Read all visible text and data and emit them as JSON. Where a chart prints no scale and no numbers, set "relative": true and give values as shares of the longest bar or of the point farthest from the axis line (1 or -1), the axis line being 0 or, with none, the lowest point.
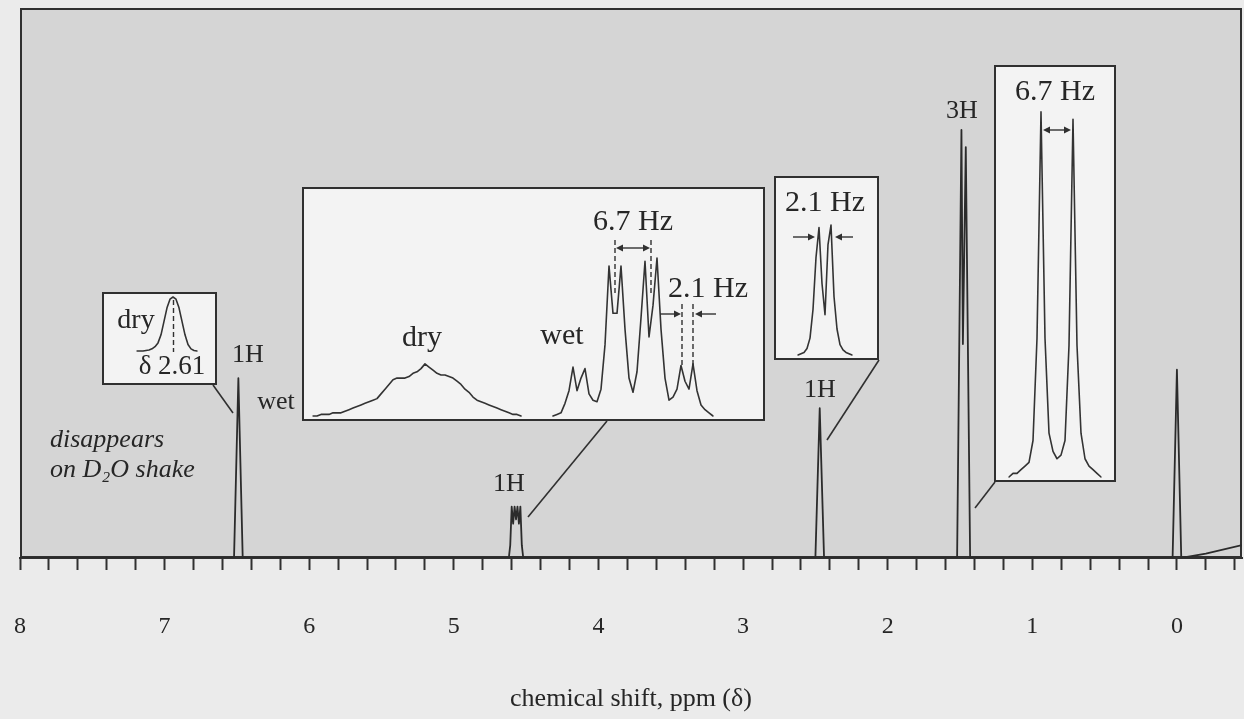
{
  "chart_data": [
    {
      "type": "line",
      "xlabel": "chemical shift, ppm (δ)",
      "relative": true,
      "color": "#2b2b2b",
      "x": [
        8,
        6.52,
        6.49,
        6.46,
        4.62,
        4.61,
        4.6,
        4.59,
        4.58,
        4.57,
        4.56,
        4.55,
        4.54,
        4.53,
        4.52,
        2.5,
        2.47,
        2.44,
        1.52,
        1.49,
        1.48,
        1.46,
        1.43,
        0.03,
        0,
        -0.03,
        -0.2,
        -0.45
      ],
      "values": [
        0,
        0,
        0.42,
        0,
        0,
        0.03,
        0.12,
        0.08,
        0.12,
        0.09,
        0.12,
        0.08,
        0.12,
        0.03,
        0,
        0,
        0.35,
        0,
        0,
        1,
        0.5,
        0.96,
        0,
        0,
        0.44,
        0,
        0.01,
        0.03
      ],
      "xlim": [
        8,
        -0.45
      ],
      "xticks": [
        8,
        {
          "value": 7.8,
          "label": null
        },
        {
          "value": 7.6,
          "label": null
        },
        {
          "value": 7.4,
          "label": null
        },
        {
          "value": 7.2,
          "label": null
        },
        7,
        {
          "value": 6.8,
          "label": null
        },
        {
          "value": 6.6,
          "label": null
        },
        {
          "value": 6.4,
          "label": null
        },
        {
          "value": 6.2,
          "label": null
        },
        6,
        {
          "value": 5.8,
          "label": null
        },
        {
          "value": 5.6,
          "label": null
        },
        {
          "value": 5.4,
          "label": null
        },
        {
          "value": 5.2,
          "label": null
        },
        5,
        {
          "value": 4.8,
          "label": null
        },
        {
          "value": 4.6,
          "label": null
        },
        {
          "value": 4.4,
          "label": null
        },
        {
          "value": 4.2,
          "label": null
        },
        4,
        {
          "value": 3.8,
          "label": null
        },
        {
          "value": 3.6,
          "label": null
        },
        {
          "value": 3.4,
          "label": null
        },
        {
          "value": 3.2,
          "label": null
        },
        3,
        {
          "value": 2.8,
          "label": null
        },
        {
          "value": 2.6,
          "label": null
        },
        {
          "value": 2.4,
          "label": null
        },
        {
          "value": 2.2,
          "label": null
        },
        2,
        {
          "value": 1.8,
          "label": null
        },
        {
          "value": 1.6,
          "label": null
        },
        {
          "value": 1.4,
          "label": null
        },
        {
          "value": 1.2,
          "label": null
        },
        1,
        {
          "value": 0.8,
          "label": null
        },
        {
          "value": 0.6,
          "label": null
        },
        {
          "value": 0.4,
          "label": null
        },
        {
          "value": 0.2,
          "label": null
        },
        0,
        {
          "value": -0.2,
          "label": null
        },
        {
          "value": -0.4,
          "label": null
        }
      ],
      "annotations": [
        "1H",
        "wet",
        "disappears on D₂O shake",
        "1H",
        "1H",
        "3H"
      ]
    },
    {
      "type": "line",
      "relative": true,
      "categories": [
        null,
        null,
        null,
        null,
        null,
        null,
        null,
        null,
        null,
        null,
        null,
        null,
        null,
        null,
        null,
        null,
        null,
        null,
        null,
        null,
        null
      ],
      "series": [
        {
          "name": "dry",
          "color": "#333333",
          "values": [
            0,
            0,
            0,
            0.01,
            0.02,
            0.04,
            0.08,
            0.15,
            0.3,
            0.55,
            0.8,
            0.96,
            1,
            0.96,
            0.8,
            0.55,
            0.3,
            0.12,
            0.04,
            0.01,
            0
          ]
        }
      ],
      "annotations": [
        "δ 2.61"
      ]
    },
    {
      "type": "line",
      "relative": true,
      "categories": [
        null,
        null,
        null,
        null,
        null,
        null,
        null,
        null,
        null,
        null,
        null,
        null,
        null,
        null,
        null,
        null,
        null,
        null,
        null,
        null,
        null,
        null,
        null,
        null,
        null,
        null,
        null,
        null,
        null,
        null,
        null,
        null,
        null,
        null,
        null,
        null,
        null,
        null,
        null,
        null,
        null,
        null,
        null,
        null,
        null,
        null,
        null,
        null,
        null,
        null,
        null,
        null,
        null,
        null,
        null,
        null,
        null,
        null,
        null,
        null,
        null,
        null,
        null,
        null,
        null,
        null,
        null,
        null,
        null,
        null,
        null,
        null,
        null,
        null,
        null,
        null,
        null,
        null,
        null,
        null,
        null,
        null,
        null,
        null,
        null,
        null,
        null,
        null,
        null,
        null,
        null,
        null,
        null,
        null,
        null,
        null,
        null,
        null,
        null,
        null,
        null
      ],
      "series": [
        {
          "name": "dry",
          "color": "#333333",
          "values": [
            0,
            0,
            0.01,
            0.01,
            0.01,
            0.02,
            0.02,
            0.02,
            0.03,
            0.04,
            0.05,
            0.06,
            0.07,
            0.08,
            0.09,
            0.1,
            0.11,
            0.14,
            0.17,
            0.2,
            0.23,
            0.24,
            0.24,
            0.24,
            0.25,
            0.27,
            0.28,
            0.3,
            0.33,
            0.31,
            0.29,
            0.27,
            0.26,
            0.26,
            0.25,
            0.24,
            0.22,
            0.2,
            0.17,
            0.15,
            0.12,
            0.1,
            0.09,
            0.08,
            0.07,
            0.06,
            0.05,
            0.04,
            0.03,
            0.02,
            0.01,
            0.01,
            0,
            null,
            null,
            null,
            null,
            null,
            null,
            null,
            null,
            null,
            null,
            null,
            null,
            null,
            null,
            null,
            null,
            null,
            null,
            null,
            null,
            null,
            null,
            null,
            null,
            null,
            null,
            null,
            null,
            null,
            null,
            null,
            null,
            null,
            null,
            null,
            null,
            null,
            null,
            null,
            null,
            null,
            null,
            null,
            null,
            null,
            null,
            null,
            null
          ]
        },
        {
          "name": "wet",
          "color": "#333333",
          "values": [
            null,
            null,
            null,
            null,
            null,
            null,
            null,
            null,
            null,
            null,
            null,
            null,
            null,
            null,
            null,
            null,
            null,
            null,
            null,
            null,
            null,
            null,
            null,
            null,
            null,
            null,
            null,
            null,
            null,
            null,
            null,
            null,
            null,
            null,
            null,
            null,
            null,
            null,
            null,
            null,
            null,
            null,
            null,
            null,
            null,
            null,
            null,
            null,
            null,
            null,
            null,
            null,
            null,
            null,
            null,
            null,
            null,
            null,
            null,
            null,
            0,
            0.01,
            0.02,
            0.08,
            0.16,
            0.31,
            0.16,
            0.24,
            0.3,
            0.14,
            0.1,
            0.09,
            0.17,
            0.45,
            0.95,
            0.65,
            0.65,
            0.95,
            0.55,
            0.24,
            0.15,
            0.28,
            0.62,
            0.98,
            0.5,
            0.7,
            1,
            0.55,
            0.24,
            0.1,
            0.12,
            0.17,
            0.32,
            0.22,
            0.17,
            0.33,
            0.16,
            0.07,
            0.04,
            0.02,
            0
          ]
        }
      ],
      "annotations": [
        "6.7 Hz",
        "2.1 Hz"
      ]
    },
    {
      "type": "line",
      "relative": true,
      "categories": [
        null,
        null,
        null,
        null,
        null,
        null,
        null,
        null,
        null,
        null,
        null,
        null,
        null,
        null,
        null,
        null,
        null,
        null,
        null
      ],
      "series": [
        {
          "color": "#333333",
          "values": [
            0,
            0.01,
            0.02,
            0.05,
            0.13,
            0.35,
            0.75,
            0.98,
            0.55,
            0.31,
            0.85,
            1,
            0.45,
            0.2,
            0.08,
            0.04,
            0.02,
            0.01,
            0
          ]
        }
      ],
      "annotations": [
        "2.1 Hz"
      ]
    },
    {
      "type": "line",
      "relative": true,
      "categories": [
        null,
        null,
        null,
        null,
        null,
        null,
        null,
        null,
        null,
        null,
        null,
        null,
        null,
        null,
        null,
        null,
        null,
        null,
        null,
        null,
        null,
        null,
        null,
        null
      ],
      "series": [
        {
          "color": "#333333",
          "values": [
            0,
            0.01,
            0.01,
            0.02,
            0.03,
            0.04,
            0.1,
            0.38,
            1,
            0.38,
            0.12,
            0.07,
            0.05,
            0.06,
            0.1,
            0.36,
            0.98,
            0.36,
            0.12,
            0.05,
            0.03,
            0.02,
            0.01,
            0
          ]
        }
      ],
      "annotations": [
        "6.7 Hz"
      ]
    }
  ]
}
